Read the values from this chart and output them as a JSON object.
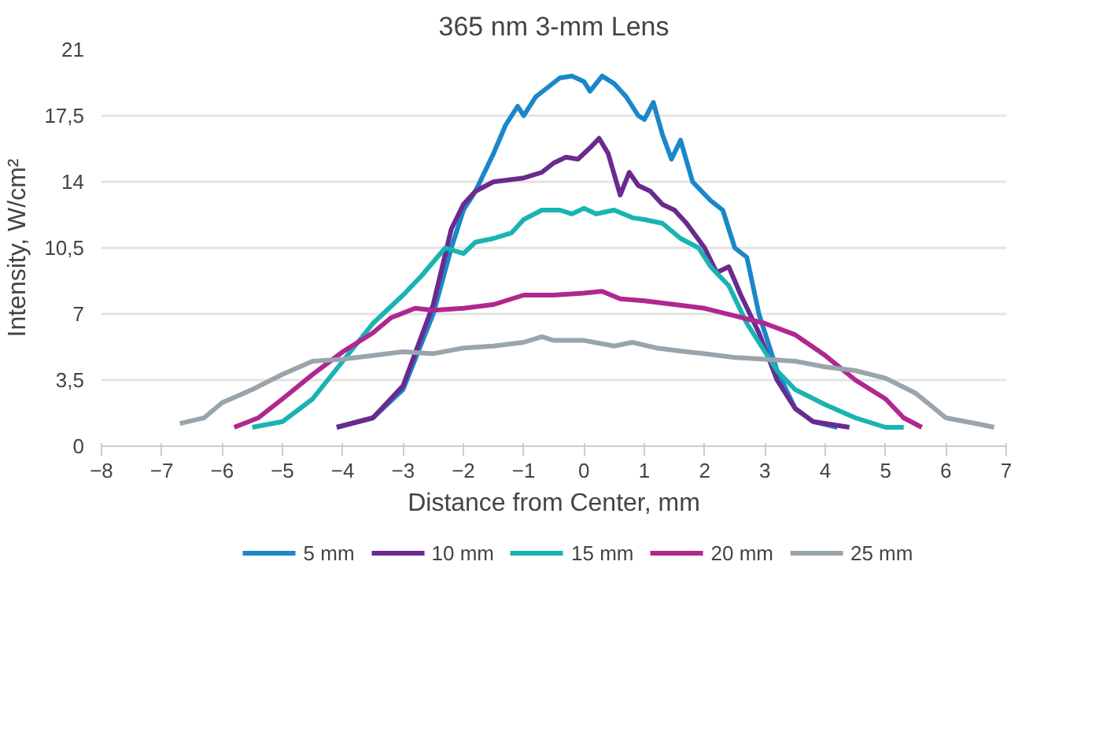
{
  "chart_data": {
    "type": "line",
    "title": "365 nm 3-mm Lens",
    "xlabel": "Distance from Center, mm",
    "ylabel": "Intensity, W/cm²",
    "xlim": [
      -8,
      7
    ],
    "xticks": [
      -8,
      -7,
      -6,
      -5,
      -4,
      -3,
      -2,
      -1,
      0,
      1,
      2,
      3,
      4,
      5,
      6,
      7
    ],
    "ylim": [
      0,
      21
    ],
    "yticks": [
      0,
      {
        "value": 3.5,
        "label": "3,5"
      },
      7,
      {
        "value": 10.5,
        "label": "10,5"
      },
      14,
      {
        "value": 17.5,
        "label": "17,5"
      },
      21
    ],
    "grid": "y",
    "legend": "bottom",
    "marker": "none",
    "line_style": "solid",
    "series": [
      {
        "name": "5 mm",
        "color": "#1a87c9",
        "x": [
          -4.1,
          -3.5,
          -3,
          -2.5,
          -2.2,
          -2,
          -1.8,
          -1.5,
          -1.3,
          -1.1,
          -1,
          -0.8,
          -0.6,
          -0.4,
          -0.2,
          0,
          0.1,
          0.3,
          0.5,
          0.7,
          0.9,
          1,
          1.15,
          1.3,
          1.45,
          1.6,
          1.8,
          2.1,
          2.3,
          2.5,
          2.7,
          2.9,
          3.2,
          3.5,
          3.8,
          4.2
        ],
        "values": [
          1,
          1.5,
          3,
          7,
          10.5,
          12.5,
          13.5,
          15.5,
          17,
          18,
          17.5,
          18.5,
          19,
          19.5,
          19.6,
          19.3,
          18.8,
          19.6,
          19.2,
          18.5,
          17.5,
          17.3,
          18.2,
          16.5,
          15.2,
          16.2,
          14,
          13,
          12.5,
          10.5,
          10,
          7,
          4,
          2,
          1.3,
          1
        ]
      },
      {
        "name": "10 mm",
        "color": "#6b2a8f",
        "x": [
          -4.1,
          -3.5,
          -3,
          -2.5,
          -2.2,
          -2,
          -1.8,
          -1.5,
          -1,
          -0.7,
          -0.5,
          -0.3,
          -0.1,
          0.1,
          0.25,
          0.4,
          0.6,
          0.75,
          0.9,
          1.1,
          1.3,
          1.5,
          1.7,
          2,
          2.2,
          2.4,
          2.6,
          2.9,
          3.2,
          3.5,
          3.8,
          4.4
        ],
        "values": [
          1,
          1.5,
          3.2,
          7.5,
          11.5,
          12.8,
          13.5,
          14,
          14.2,
          14.5,
          15,
          15.3,
          15.2,
          15.8,
          16.3,
          15.5,
          13.3,
          14.5,
          13.8,
          13.5,
          12.8,
          12.5,
          11.8,
          10.5,
          9.2,
          9.5,
          8,
          6,
          3.5,
          2,
          1.3,
          1
        ]
      },
      {
        "name": "15 mm",
        "color": "#1ab3b3",
        "x": [
          -5.5,
          -5,
          -4.5,
          -4,
          -3.5,
          -3,
          -2.7,
          -2.3,
          -2,
          -1.8,
          -1.5,
          -1.2,
          -1,
          -0.7,
          -0.4,
          -0.2,
          0,
          0.2,
          0.5,
          0.8,
          1,
          1.3,
          1.6,
          1.9,
          2.1,
          2.4,
          2.7,
          3,
          3.2,
          3.5,
          4,
          4.5,
          5,
          5.3
        ],
        "values": [
          1,
          1.3,
          2.5,
          4.5,
          6.5,
          8,
          9,
          10.5,
          10.2,
          10.8,
          11,
          11.3,
          12,
          12.5,
          12.5,
          12.3,
          12.6,
          12.3,
          12.5,
          12.1,
          12,
          11.8,
          11,
          10.5,
          9.5,
          8.5,
          6.5,
          5,
          4,
          3,
          2.2,
          1.5,
          1,
          1
        ]
      },
      {
        "name": "20 mm",
        "color": "#b0288f",
        "x": [
          -5.8,
          -5.4,
          -5,
          -4.5,
          -4,
          -3.5,
          -3.2,
          -2.8,
          -2.5,
          -2,
          -1.5,
          -1,
          -0.5,
          0,
          0.3,
          0.6,
          1,
          1.5,
          2,
          2.5,
          3,
          3.5,
          4,
          4.5,
          5,
          5.3,
          5.6
        ],
        "values": [
          1,
          1.5,
          2.5,
          3.8,
          5,
          6,
          6.8,
          7.3,
          7.2,
          7.3,
          7.5,
          8,
          8,
          8.1,
          8.2,
          7.8,
          7.7,
          7.5,
          7.3,
          6.9,
          6.5,
          5.9,
          4.8,
          3.5,
          2.5,
          1.5,
          1
        ]
      },
      {
        "name": "25 mm",
        "color": "#9aa4ab",
        "x": [
          -6.7,
          -6.3,
          -6,
          -5.5,
          -5,
          -4.5,
          -4,
          -3.5,
          -3,
          -2.5,
          -2,
          -1.5,
          -1,
          -0.7,
          -0.5,
          0,
          0.5,
          0.8,
          1.2,
          1.7,
          2,
          2.5,
          3,
          3.5,
          4,
          4.5,
          5,
          5.5,
          6,
          6.5,
          6.8
        ],
        "values": [
          1.2,
          1.5,
          2.3,
          3,
          3.8,
          4.5,
          4.6,
          4.8,
          5,
          4.9,
          5.2,
          5.3,
          5.5,
          5.8,
          5.6,
          5.6,
          5.3,
          5.5,
          5.2,
          5,
          4.9,
          4.7,
          4.6,
          4.5,
          4.2,
          4,
          3.6,
          2.8,
          1.5,
          1.2,
          1
        ]
      }
    ]
  }
}
